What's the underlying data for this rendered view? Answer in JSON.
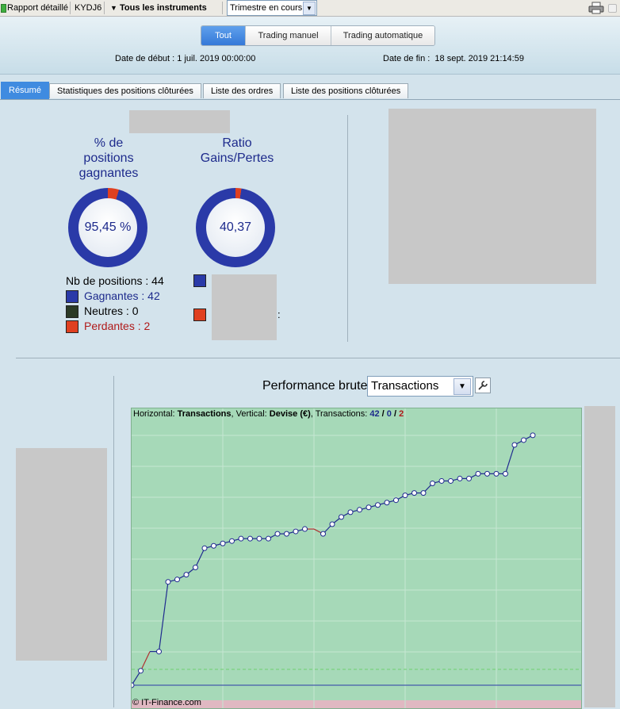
{
  "toolbar": {
    "report_label": "Rapport détaillé",
    "account": "KYDJ6",
    "instruments": "Tous les instruments",
    "instruments_arrow": "▼",
    "period": "Trimestre en cours",
    "period_arrow": "▼"
  },
  "filter": {
    "tabs": [
      "Tout",
      "Trading manuel",
      "Trading automatique"
    ],
    "active": "Tout"
  },
  "dates": {
    "start": "Date de début : 1 juil. 2019 00:00:00",
    "end": "Date de fin :  18 sept. 2019 21:14:59"
  },
  "tabs": [
    "Résumé",
    "Statistiques des positions clôturées",
    "Liste des ordres",
    "Liste des positions clôturées"
  ],
  "kpis": {
    "win_title_l1": "% de",
    "win_title_l2": "positions",
    "win_title_l3": "gagnantes",
    "win_value": "95,45 %",
    "win_fraction": 0.9545,
    "ratio_title_l1": "Ratio",
    "ratio_title_l2": "Gains/Pertes",
    "ratio_value": "40,37",
    "ratio_gain_fraction": 0.9758
  },
  "legend": {
    "total": "Nb de positions : 44",
    "winners": "Gagnantes : 42",
    "neutral": "Neutres : 0",
    "losers": "Perdantes : 2",
    "stray_colon": ":"
  },
  "performance": {
    "label": "Performance brute",
    "select_value": "Transactions",
    "select_arrow": "▼"
  },
  "chart_data": {
    "type": "line",
    "header": {
      "h_prefix": "Horizontal: ",
      "h_value": "Transactions",
      "v_prefix": ", Vertical: ",
      "v_value": "Devise (€)",
      "t_prefix": ", Transactions: ",
      "wins": "42",
      "slash1": " / ",
      "neutral": "0",
      "slash2": " / ",
      "losses": "2"
    },
    "footer": "© IT-Finance.com",
    "x": [
      0,
      1,
      2,
      3,
      4,
      5,
      6,
      7,
      8,
      9,
      10,
      11,
      12,
      13,
      14,
      15,
      16,
      17,
      18,
      19,
      20,
      21,
      22,
      23,
      24,
      25,
      26,
      27,
      28,
      29,
      30,
      31,
      32,
      33,
      34,
      35,
      36,
      37,
      38,
      39,
      40,
      41,
      42,
      43,
      44
    ],
    "values": [
      0,
      6,
      14,
      14,
      43,
      44,
      46,
      49,
      57,
      58,
      59,
      60,
      61,
      61,
      61,
      61,
      63,
      63,
      64,
      65,
      65,
      63,
      67,
      70,
      72,
      73,
      74,
      75,
      76,
      77,
      79,
      80,
      80,
      84,
      85,
      85,
      86,
      86,
      88,
      88,
      88,
      88,
      100,
      102,
      104
    ],
    "losing_steps": [
      2,
      20
    ],
    "colors": {
      "line": "#1f2a8f",
      "loss": "#b03030",
      "point_fill": "#ffffff",
      "background": "#a6d9b8"
    }
  },
  "colors": {
    "win": "#2a3aa8",
    "loss": "#e04020",
    "neutral": "#2b3a26",
    "text_blue": "#1d2a8c",
    "text_red": "#b01a1a",
    "accent": "#3f8be0"
  }
}
